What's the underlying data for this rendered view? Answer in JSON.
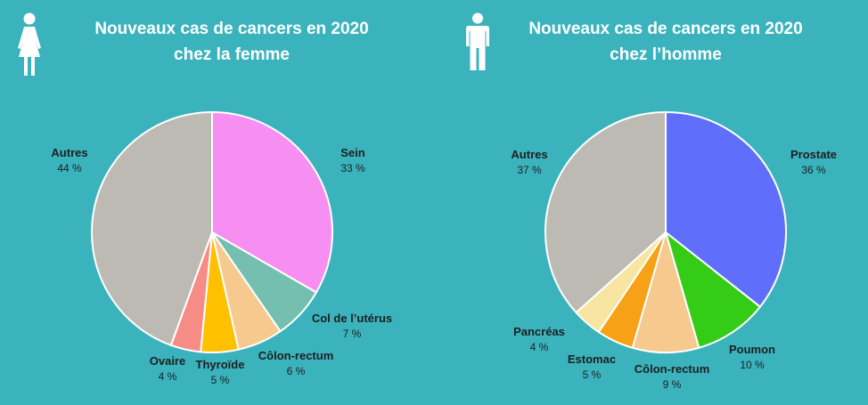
{
  "chart_data": [
    {
      "type": "pie",
      "title": "Nouveaux cas de cancers en 2020",
      "subtitle": "chez la femme",
      "icon": "woman-icon",
      "slices": [
        {
          "label": "Sein",
          "value": 33,
          "value_label": "33 %",
          "color": "#f78ef2"
        },
        {
          "label": "Col de l’utérus",
          "value": 7,
          "value_label": "7 %",
          "color": "#74bfb0"
        },
        {
          "label": "Côlon-rectum",
          "value": 6,
          "value_label": "6 %",
          "color": "#f6c98e"
        },
        {
          "label": "Thyroïde",
          "value": 5,
          "value_label": "5 %",
          "color": "#ffc000"
        },
        {
          "label": "Ovaire",
          "value": 4,
          "value_label": "4 %",
          "color": "#f78b86"
        },
        {
          "label": "Autres",
          "value": 44,
          "value_label": "44 %",
          "color": "#bdbab3"
        }
      ]
    },
    {
      "type": "pie",
      "title": "Nouveaux cas de cancers en 2020",
      "subtitle": "chez l’homme",
      "icon": "man-icon",
      "slices": [
        {
          "label": "Prostate",
          "value": 36,
          "value_label": "36 %",
          "color": "#5f6ffc"
        },
        {
          "label": "Poumon",
          "value": 10,
          "value_label": "10 %",
          "color": "#35cc17"
        },
        {
          "label": "Côlon-rectum",
          "value": 9,
          "value_label": "9 %",
          "color": "#f6c98e"
        },
        {
          "label": "Estomac",
          "value": 5,
          "value_label": "5 %",
          "color": "#f7a116"
        },
        {
          "label": "Pancréas",
          "value": 4,
          "value_label": "4 %",
          "color": "#f8e5a2"
        },
        {
          "label": "Autres",
          "value": 37,
          "value_label": "37 %",
          "color": "#bdbab3"
        }
      ]
    }
  ]
}
